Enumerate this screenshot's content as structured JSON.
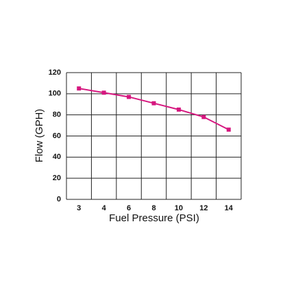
{
  "chart_data": {
    "type": "line",
    "x_label": "Fuel Pressure (PSI)",
    "y_label": "Flow (GPH)",
    "categories": [
      "3",
      "4",
      "6",
      "8",
      "10",
      "12",
      "14"
    ],
    "series": [
      {
        "name": "Flow",
        "color": "#d6177f",
        "values": [
          105,
          101,
          97,
          91,
          85,
          78,
          66
        ]
      }
    ],
    "ylim": [
      0,
      120
    ],
    "yticks": [
      0,
      20,
      40,
      60,
      80,
      100,
      120
    ],
    "grid": true
  }
}
